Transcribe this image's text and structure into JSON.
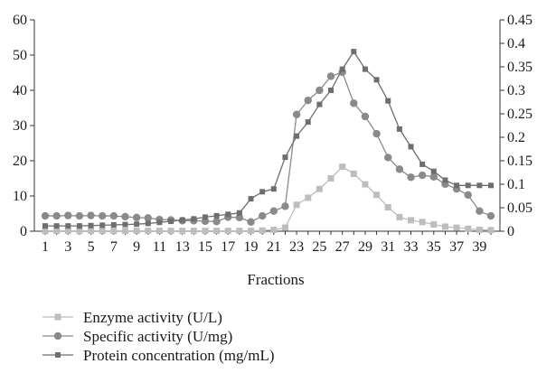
{
  "chart_data": {
    "type": "line",
    "xlabel": "Fractions",
    "ylabel": "",
    "y2label": "",
    "x_ticks": [
      1,
      3,
      5,
      7,
      9,
      11,
      13,
      15,
      17,
      19,
      21,
      23,
      25,
      27,
      29,
      31,
      33,
      35,
      37,
      39
    ],
    "xlim": [
      1,
      40
    ],
    "ylim": [
      0,
      60
    ],
    "y_ticks": [
      0,
      10,
      20,
      30,
      40,
      50,
      60
    ],
    "y2lim": [
      0,
      0.45
    ],
    "y2_ticks": [
      "0",
      "0.05",
      "0.1",
      "0.15",
      "0.2",
      "0.25",
      "0.3",
      "0.35",
      "0.4",
      "0.45"
    ],
    "grid": false,
    "legend_position": "bottom-left",
    "x": [
      1,
      2,
      3,
      4,
      5,
      6,
      7,
      8,
      9,
      10,
      11,
      12,
      13,
      14,
      15,
      16,
      17,
      18,
      19,
      20,
      21,
      22,
      23,
      24,
      25,
      26,
      27,
      28,
      29,
      30,
      31,
      32,
      33,
      34,
      35,
      36,
      37,
      38,
      39,
      40
    ],
    "series": [
      {
        "name": "Enzyme activity (U/L)",
        "axis": "left",
        "marker": "square",
        "color": "#bdbdbd",
        "values": [
          0.1,
          0.1,
          0.1,
          0.1,
          0.1,
          0.1,
          0.1,
          0.1,
          0.1,
          0.1,
          0.1,
          0.1,
          0.1,
          0.1,
          0.1,
          0.1,
          0.1,
          0.1,
          0.1,
          0.2,
          0.4,
          1.0,
          7.5,
          9.5,
          12.0,
          15.0,
          18.3,
          16.3,
          13.3,
          10.3,
          6.8,
          4.0,
          3.1,
          2.6,
          1.9,
          1.3,
          1.0,
          0.7,
          0.4,
          0.3
        ]
      },
      {
        "name": "Specific activity (U/mg)",
        "axis": "left",
        "marker": "circle",
        "color": "#8a8a8a",
        "values": [
          3.8,
          3.8,
          3.9,
          3.8,
          3.9,
          3.8,
          3.8,
          3.6,
          3.4,
          3.3,
          2.9,
          2.8,
          2.6,
          2.6,
          2.5,
          2.4,
          3.5,
          3.4,
          2.3,
          3.8,
          5.0,
          6.2,
          29.0,
          32.5,
          35.0,
          38.5,
          39.5,
          31.8,
          28.5,
          24.2,
          18.3,
          15.4,
          13.4,
          13.9,
          13.5,
          11.7,
          10.5,
          9.0,
          5.0,
          3.8
        ],
        "note": "series values given in right-axis units (0-0.45) per data_axis_scale below",
        "data_axis_scale": "right"
      },
      {
        "name": "Protein concentration (mg/mL)",
        "axis": "right",
        "marker": "diamond",
        "color": "#6e6e6e",
        "values": [
          1.5,
          1.5,
          1.5,
          1.5,
          1.6,
          1.7,
          1.8,
          1.9,
          2.0,
          2.2,
          2.5,
          2.8,
          3.2,
          3.5,
          4.0,
          4.4,
          4.8,
          5.2,
          9.2,
          11.2,
          12.0,
          21.0,
          27.0,
          31.0,
          36.0,
          40.0,
          46.0,
          51.0,
          46.0,
          43.0,
          37.0,
          29.0,
          24.0,
          19.0,
          17.0,
          14.5,
          13.0,
          13.0,
          13.0,
          13.0
        ],
        "data_axis_scale": "left"
      }
    ]
  },
  "legend": [
    {
      "label": "Enzyme activity (U/L)"
    },
    {
      "label": "Specific activity (U/mg)"
    },
    {
      "label": "Protein concentration (mg/mL)"
    }
  ]
}
